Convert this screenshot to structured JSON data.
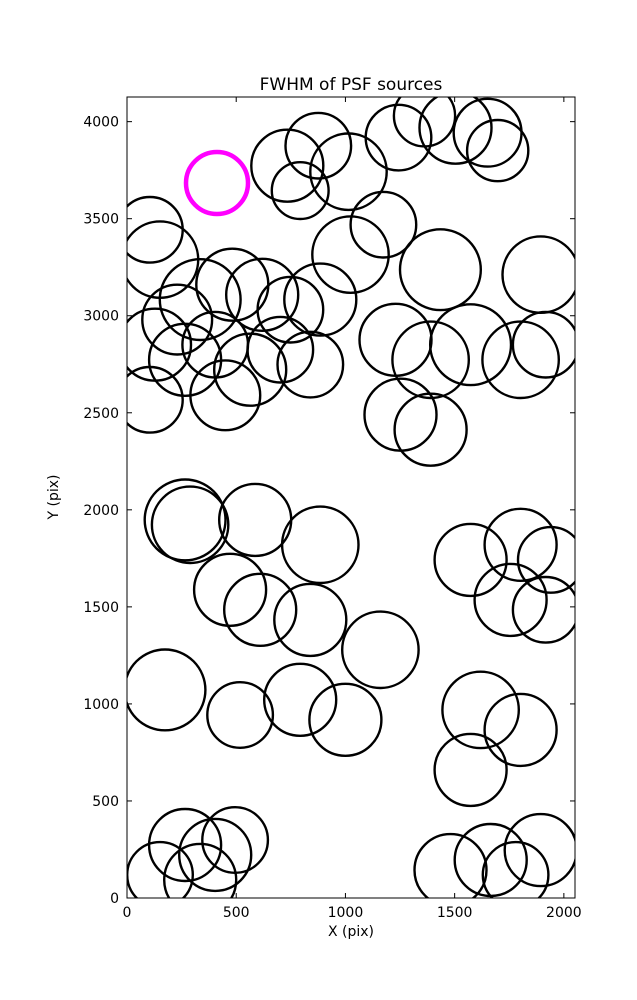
{
  "chart_data": {
    "type": "scatter",
    "title": "FWHM of PSF sources",
    "xlabel": "X (pix)",
    "ylabel": "Y (pix)",
    "xlim": [
      0,
      2051
    ],
    "ylim": [
      0,
      4127
    ],
    "xticks": [
      0,
      500,
      1000,
      1500,
      2000
    ],
    "yticks": [
      0,
      500,
      1000,
      1500,
      2000,
      2500,
      3000,
      3500,
      4000
    ],
    "grid": false,
    "legend": "none",
    "marker": "open-circle",
    "colors": {
      "source_stroke": "#000000",
      "highlight_stroke": "#ff00ff",
      "background": "#ffffff",
      "axes": "#000000"
    },
    "columns": [
      "x",
      "y",
      "r"
    ],
    "sources": [
      [
        734,
        3773,
        165
      ],
      [
        876,
        3876,
        150
      ],
      [
        1014,
        3742,
        175
      ],
      [
        793,
        3645,
        130
      ],
      [
        1243,
        3918,
        150
      ],
      [
        1362,
        4030,
        140
      ],
      [
        1504,
        3969,
        165
      ],
      [
        1651,
        3943,
        155
      ],
      [
        1697,
        3851,
        140
      ],
      [
        105,
        3443,
        150
      ],
      [
        151,
        3289,
        175
      ],
      [
        335,
        3083,
        185
      ],
      [
        482,
        3160,
        165
      ],
      [
        619,
        3108,
        165
      ],
      [
        748,
        3031,
        150
      ],
      [
        885,
        3083,
        165
      ],
      [
        1023,
        3315,
        175
      ],
      [
        1174,
        3469,
        150
      ],
      [
        1435,
        3237,
        185
      ],
      [
        1894,
        3212,
        175
      ],
      [
        128,
        2851,
        165
      ],
      [
        266,
        2773,
        165
      ],
      [
        404,
        2851,
        150
      ],
      [
        564,
        2722,
        165
      ],
      [
        702,
        2825,
        150
      ],
      [
        839,
        2748,
        150
      ],
      [
        1229,
        2876,
        165
      ],
      [
        1390,
        2773,
        175
      ],
      [
        1573,
        2851,
        185
      ],
      [
        1802,
        2773,
        175
      ],
      [
        1917,
        2851,
        150
      ],
      [
        1252,
        2490,
        165
      ],
      [
        1390,
        2413,
        165
      ],
      [
        105,
        2567,
        150
      ],
      [
        230,
        2980,
        160
      ],
      [
        450,
        2590,
        160
      ],
      [
        266,
        1948,
        185
      ],
      [
        289,
        1923,
        175
      ],
      [
        587,
        1948,
        165
      ],
      [
        885,
        1820,
        175
      ],
      [
        1573,
        1742,
        165
      ],
      [
        1802,
        1820,
        165
      ],
      [
        1940,
        1742,
        150
      ],
      [
        472,
        1588,
        165
      ],
      [
        610,
        1485,
        165
      ],
      [
        839,
        1433,
        165
      ],
      [
        1756,
        1536,
        165
      ],
      [
        1917,
        1485,
        150
      ],
      [
        1160,
        1279,
        175
      ],
      [
        174,
        1072,
        185
      ],
      [
        518,
        943,
        150
      ],
      [
        793,
        1021,
        165
      ],
      [
        1000,
        918,
        165
      ],
      [
        1619,
        969,
        175
      ],
      [
        1802,
        866,
        165
      ],
      [
        1573,
        660,
        165
      ],
      [
        266,
        273,
        165
      ],
      [
        404,
        222,
        165
      ],
      [
        495,
        299,
        150
      ],
      [
        151,
        119,
        150
      ],
      [
        335,
        93,
        165
      ],
      [
        1481,
        144,
        165
      ],
      [
        1665,
        196,
        165
      ],
      [
        1779,
        119,
        150
      ],
      [
        1894,
        247,
        165
      ]
    ],
    "highlighted_source": {
      "x": 412,
      "y": 3684,
      "r": 142
    }
  }
}
